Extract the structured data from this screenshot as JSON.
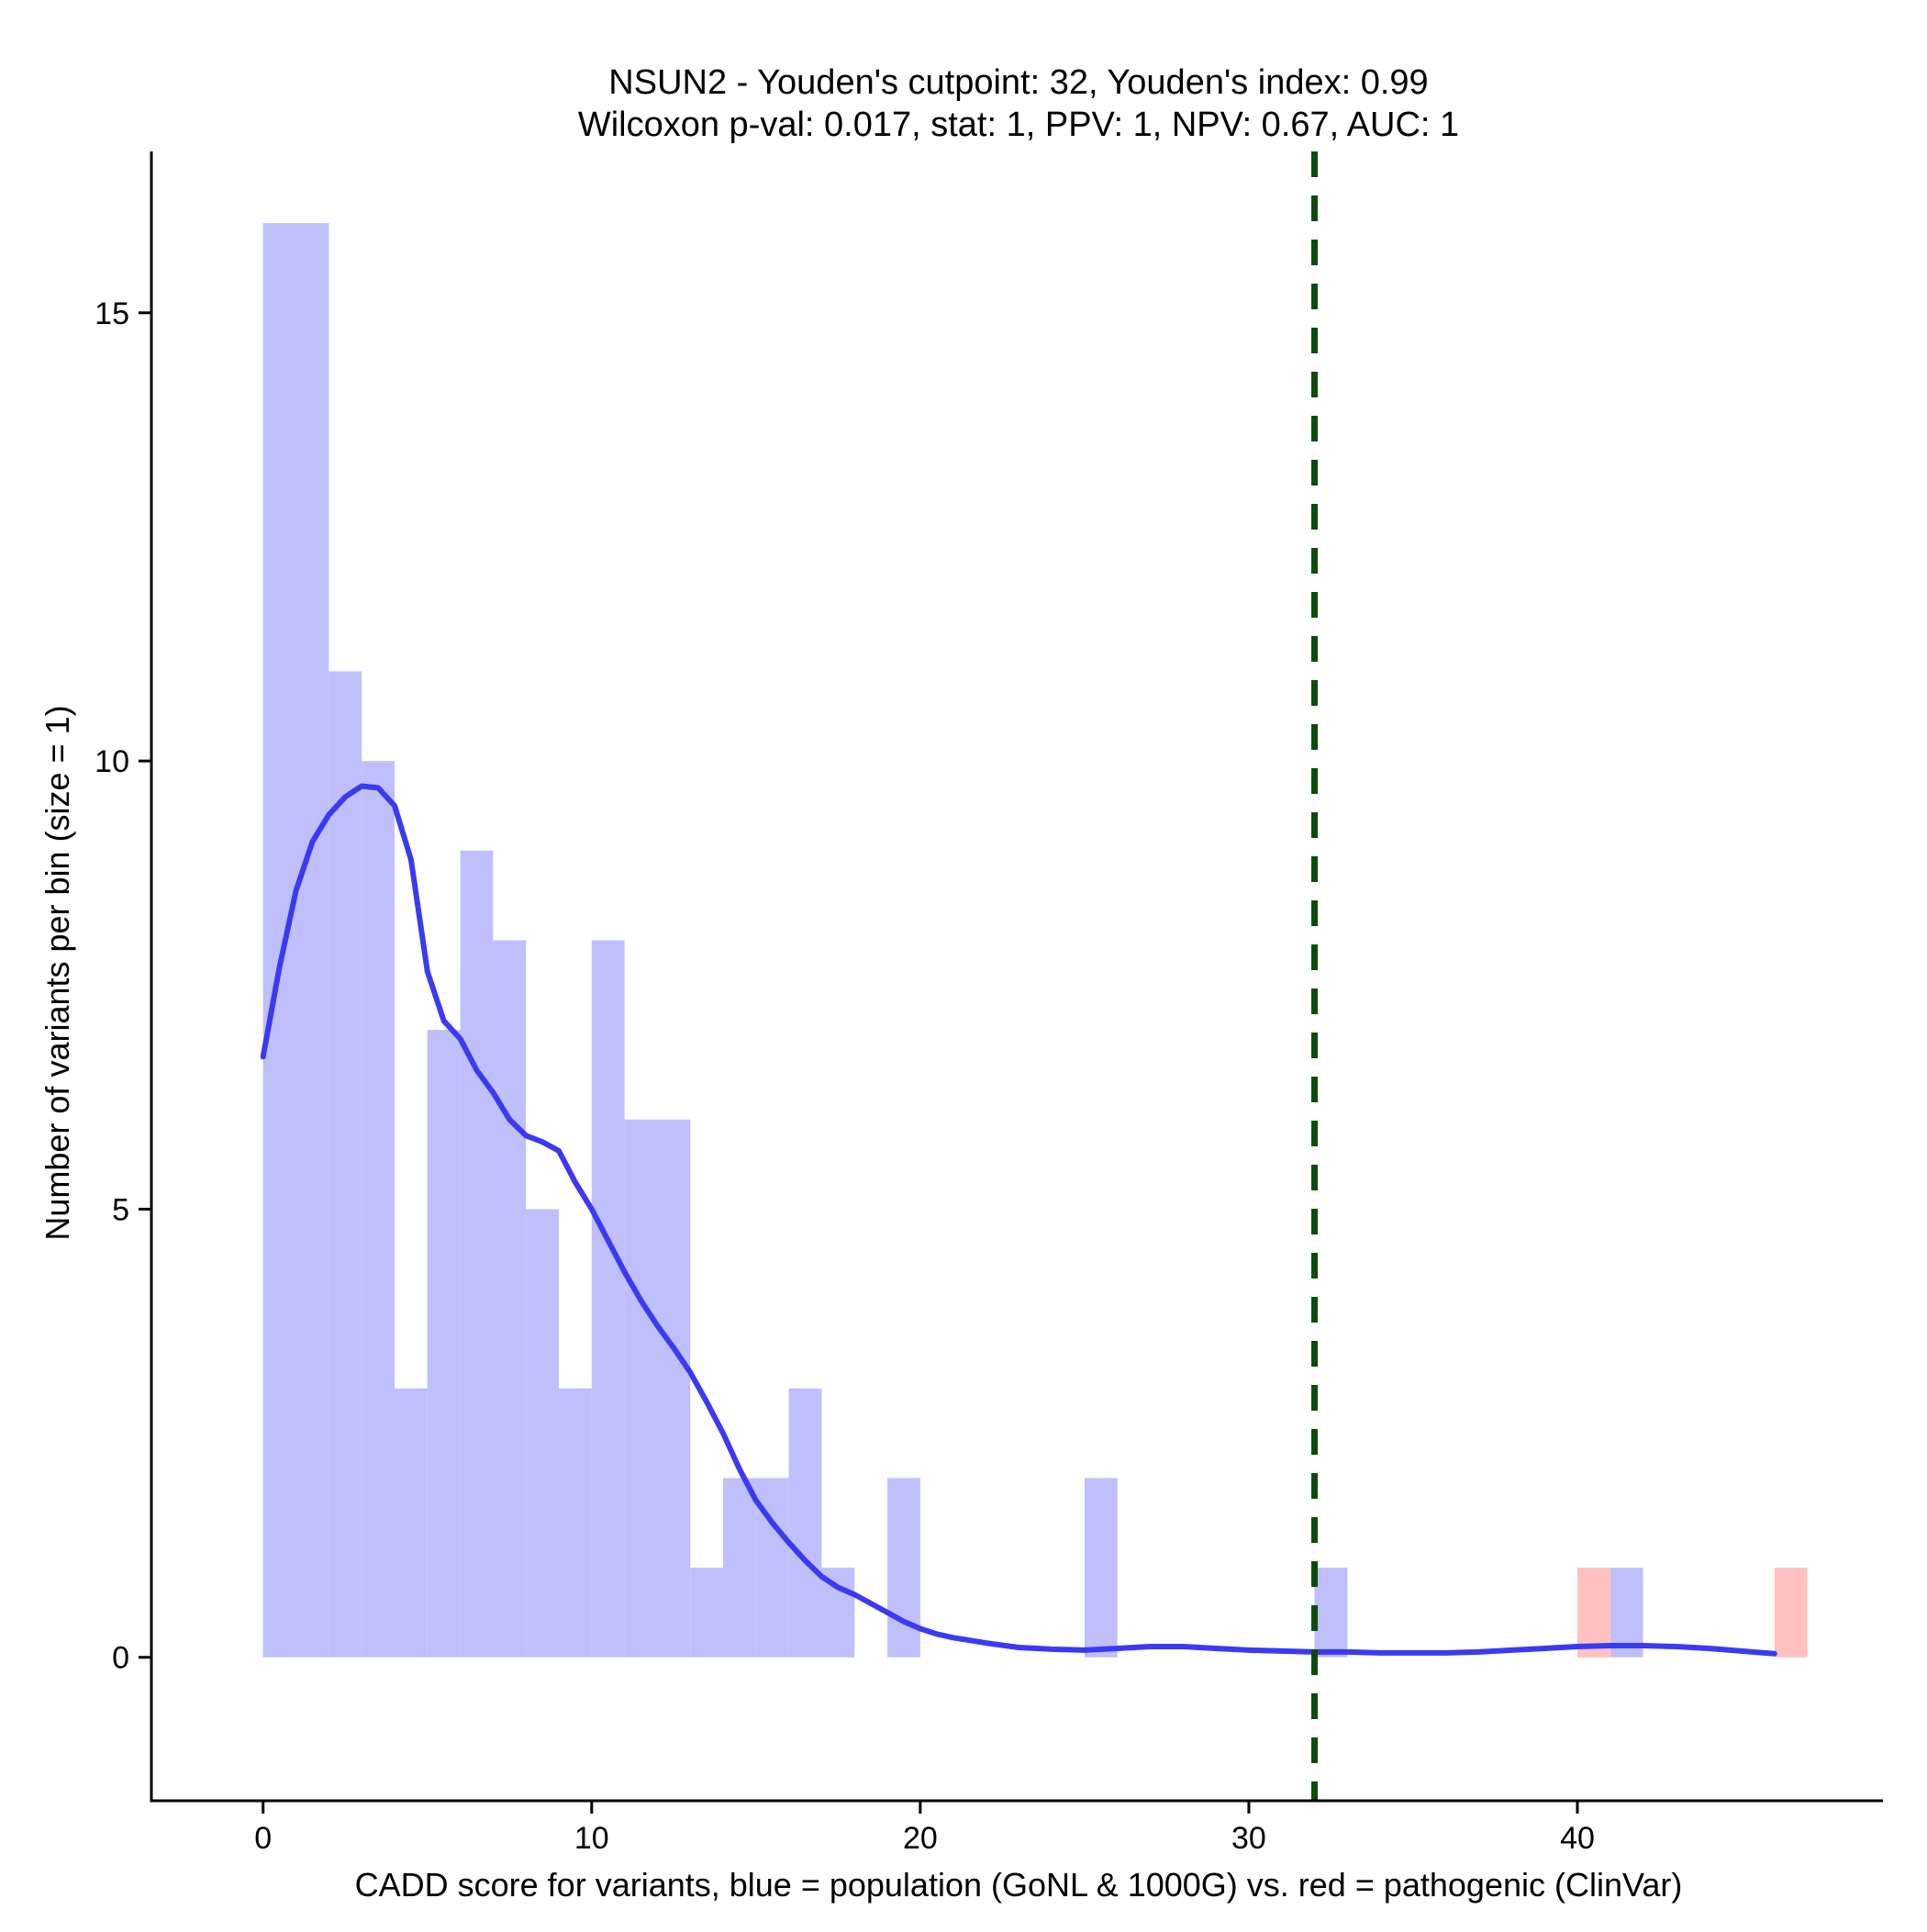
{
  "chart_data": {
    "type": "bar",
    "title_line1": "NSUN2 - Youden's cutpoint: 32, Youden's index: 0.99",
    "title_line2": "Wilcoxon p-val: 0.017, stat: 1, PPV: 1, NPV: 0.67, AUC: 1",
    "xlabel": "CADD score for variants, blue = population (GoNL & 1000G) vs. red = pathogenic (ClinVar)",
    "ylabel": "Number of variants per bin (size = 1)",
    "xlim": [
      -3.4,
      49.3
    ],
    "ylim": [
      -1.6,
      16.8
    ],
    "x_ticks": [
      0,
      10,
      20,
      30,
      40
    ],
    "y_ticks": [
      0,
      5,
      10,
      15
    ],
    "bin_size": 1,
    "cutpoint": 32,
    "colors": {
      "population": "#bfbffb",
      "pathogenic": "#ffc0c0",
      "density": "#3a3af2",
      "cutpoint": "#0d4a0d"
    },
    "series": [
      {
        "name": "population",
        "bins": [
          [
            0,
            16
          ],
          [
            1,
            16
          ],
          [
            2,
            11
          ],
          [
            3,
            10
          ],
          [
            4,
            3
          ],
          [
            5,
            7
          ],
          [
            6,
            9
          ],
          [
            7,
            8
          ],
          [
            8,
            5
          ],
          [
            9,
            3
          ],
          [
            10,
            8
          ],
          [
            11,
            6
          ],
          [
            12,
            6
          ],
          [
            13,
            1
          ],
          [
            14,
            2
          ],
          [
            15,
            2
          ],
          [
            16,
            3
          ],
          [
            17,
            1
          ],
          [
            19,
            2
          ],
          [
            25,
            2
          ],
          [
            32,
            1
          ],
          [
            41,
            1
          ]
        ]
      },
      {
        "name": "pathogenic",
        "bins": [
          [
            40,
            1
          ],
          [
            46,
            1
          ]
        ]
      }
    ],
    "density_curve": [
      [
        0,
        6.7
      ],
      [
        0.5,
        7.7
      ],
      [
        1,
        8.55
      ],
      [
        1.5,
        9.1
      ],
      [
        2,
        9.4
      ],
      [
        2.5,
        9.6
      ],
      [
        3,
        9.72
      ],
      [
        3.5,
        9.7
      ],
      [
        4,
        9.5
      ],
      [
        4.5,
        8.9
      ],
      [
        5,
        7.65
      ],
      [
        5.5,
        7.1
      ],
      [
        6,
        6.9
      ],
      [
        6.5,
        6.55
      ],
      [
        7,
        6.3
      ],
      [
        7.5,
        6.0
      ],
      [
        8,
        5.82
      ],
      [
        8.5,
        5.75
      ],
      [
        9,
        5.65
      ],
      [
        9.5,
        5.3
      ],
      [
        10,
        5.0
      ],
      [
        10.5,
        4.65
      ],
      [
        11,
        4.3
      ],
      [
        11.5,
        3.98
      ],
      [
        12,
        3.7
      ],
      [
        12.5,
        3.45
      ],
      [
        13,
        3.18
      ],
      [
        13.5,
        2.85
      ],
      [
        14,
        2.5
      ],
      [
        14.5,
        2.1
      ],
      [
        15,
        1.75
      ],
      [
        15.5,
        1.5
      ],
      [
        16,
        1.28
      ],
      [
        16.5,
        1.08
      ],
      [
        17,
        0.9
      ],
      [
        17.5,
        0.78
      ],
      [
        18,
        0.7
      ],
      [
        18.5,
        0.6
      ],
      [
        19,
        0.5
      ],
      [
        19.5,
        0.4
      ],
      [
        20,
        0.32
      ],
      [
        20.5,
        0.26
      ],
      [
        21,
        0.22
      ],
      [
        22,
        0.16
      ],
      [
        23,
        0.11
      ],
      [
        24,
        0.09
      ],
      [
        25,
        0.08
      ],
      [
        26,
        0.1
      ],
      [
        27,
        0.12
      ],
      [
        28,
        0.12
      ],
      [
        29,
        0.1
      ],
      [
        30,
        0.08
      ],
      [
        31,
        0.07
      ],
      [
        32,
        0.06
      ],
      [
        33,
        0.06
      ],
      [
        34,
        0.05
      ],
      [
        35,
        0.05
      ],
      [
        36,
        0.05
      ],
      [
        37,
        0.06
      ],
      [
        38,
        0.08
      ],
      [
        39,
        0.1
      ],
      [
        40,
        0.12
      ],
      [
        41,
        0.13
      ],
      [
        42,
        0.13
      ],
      [
        43,
        0.12
      ],
      [
        44,
        0.1
      ],
      [
        45,
        0.07
      ],
      [
        46,
        0.04
      ]
    ]
  }
}
